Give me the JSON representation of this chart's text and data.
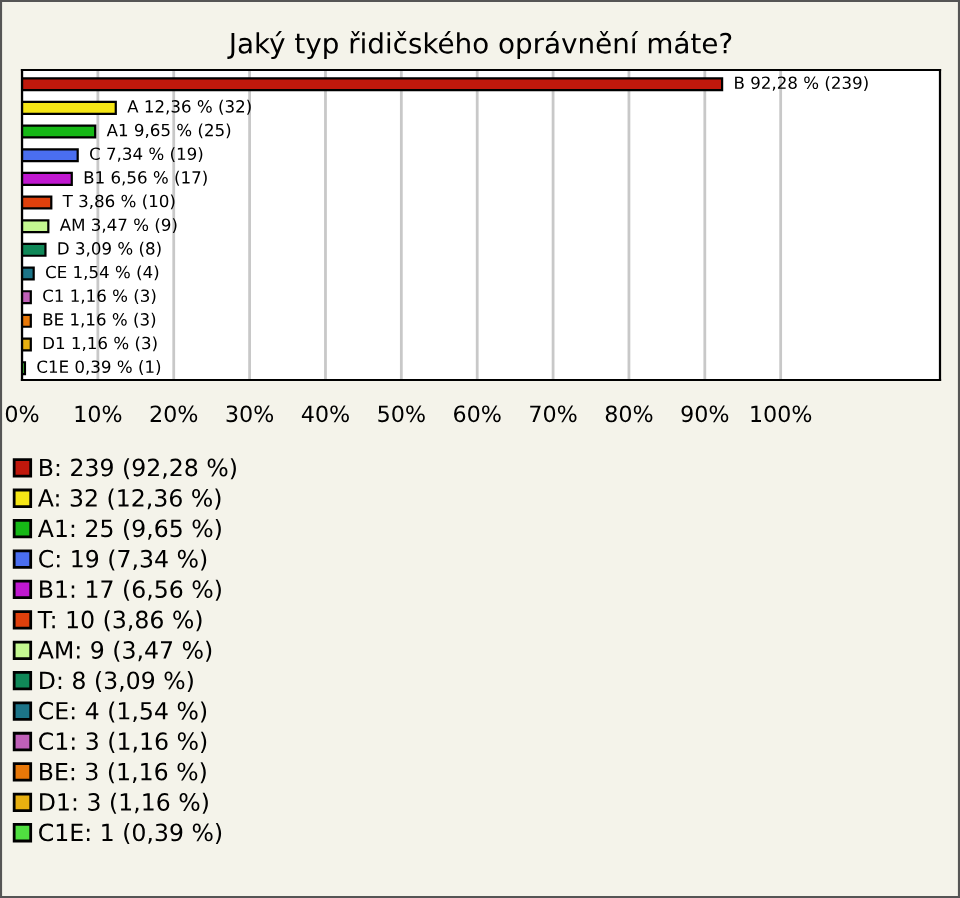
{
  "chart_data": {
    "type": "bar",
    "orientation": "horizontal",
    "title": "Jaký typ řidičského oprávnění máte?",
    "categories": [
      null,
      null,
      null,
      null,
      null,
      null,
      null,
      null,
      null,
      null,
      null,
      null,
      null
    ],
    "series": [
      {
        "name": "B: 239 (92,28 %)",
        "color": "#c0180c",
        "values": [
          92.28,
          null,
          null,
          null,
          null,
          null,
          null,
          null,
          null,
          null,
          null,
          null,
          null
        ],
        "value_labels": [
          "B 92,28 % (239)",
          null,
          null,
          null,
          null,
          null,
          null,
          null,
          null,
          null,
          null,
          null,
          null
        ]
      },
      {
        "name": "A: 32 (12,36 %)",
        "color": "#f5e616",
        "values": [
          null,
          12.36,
          null,
          null,
          null,
          null,
          null,
          null,
          null,
          null,
          null,
          null,
          null
        ],
        "value_labels": [
          null,
          "A 12,36 % (32)",
          null,
          null,
          null,
          null,
          null,
          null,
          null,
          null,
          null,
          null,
          null
        ]
      },
      {
        "name": "A1: 25 (9,65 %)",
        "color": "#16b816",
        "values": [
          null,
          null,
          9.65,
          null,
          null,
          null,
          null,
          null,
          null,
          null,
          null,
          null,
          null
        ],
        "value_labels": [
          null,
          null,
          "A1 9,65 % (25)",
          null,
          null,
          null,
          null,
          null,
          null,
          null,
          null,
          null,
          null
        ]
      },
      {
        "name": "C: 19 (7,34 %)",
        "color": "#4a6ef0",
        "values": [
          null,
          null,
          null,
          7.34,
          null,
          null,
          null,
          null,
          null,
          null,
          null,
          null,
          null
        ],
        "value_labels": [
          null,
          null,
          null,
          "C 7,34 % (19)",
          null,
          null,
          null,
          null,
          null,
          null,
          null,
          null,
          null
        ]
      },
      {
        "name": "B1: 17 (6,56 %)",
        "color": "#c018d0",
        "values": [
          null,
          null,
          null,
          null,
          6.56,
          null,
          null,
          null,
          null,
          null,
          null,
          null,
          null
        ],
        "value_labels": [
          null,
          null,
          null,
          null,
          "B1 6,56 % (17)",
          null,
          null,
          null,
          null,
          null,
          null,
          null,
          null
        ]
      },
      {
        "name": "T: 10 (3,86 %)",
        "color": "#e0400c",
        "values": [
          null,
          null,
          null,
          null,
          null,
          3.86,
          null,
          null,
          null,
          null,
          null,
          null,
          null
        ],
        "value_labels": [
          null,
          null,
          null,
          null,
          null,
          "T 3,86 % (10)",
          null,
          null,
          null,
          null,
          null,
          null,
          null
        ]
      },
      {
        "name": "AM: 9 (3,47 %)",
        "color": "#c4f890",
        "values": [
          null,
          null,
          null,
          null,
          null,
          null,
          3.47,
          null,
          null,
          null,
          null,
          null,
          null
        ],
        "value_labels": [
          null,
          null,
          null,
          null,
          null,
          null,
          "AM 3,47 % (9)",
          null,
          null,
          null,
          null,
          null,
          null
        ]
      },
      {
        "name": "D: 8 (3,09 %)",
        "color": "#108858",
        "values": [
          null,
          null,
          null,
          null,
          null,
          null,
          null,
          3.09,
          null,
          null,
          null,
          null,
          null
        ],
        "value_labels": [
          null,
          null,
          null,
          null,
          null,
          null,
          null,
          "D 3,09 % (8)",
          null,
          null,
          null,
          null,
          null
        ]
      },
      {
        "name": "CE: 4 (1,54 %)",
        "color": "#1c7488",
        "values": [
          null,
          null,
          null,
          null,
          null,
          null,
          null,
          null,
          1.54,
          null,
          null,
          null,
          null
        ],
        "value_labels": [
          null,
          null,
          null,
          null,
          null,
          null,
          null,
          null,
          "CE 1,54 % (4)",
          null,
          null,
          null,
          null
        ]
      },
      {
        "name": "C1: 3 (1,16 %)",
        "color": "#c060b8",
        "values": [
          null,
          null,
          null,
          null,
          null,
          null,
          null,
          null,
          null,
          1.16,
          null,
          null,
          null
        ],
        "value_labels": [
          null,
          null,
          null,
          null,
          null,
          null,
          null,
          null,
          null,
          "C1 1,16 % (3)",
          null,
          null,
          null
        ]
      },
      {
        "name": "BE: 3 (1,16 %)",
        "color": "#e87808",
        "values": [
          null,
          null,
          null,
          null,
          null,
          null,
          null,
          null,
          null,
          null,
          1.16,
          null,
          null
        ],
        "value_labels": [
          null,
          null,
          null,
          null,
          null,
          null,
          null,
          null,
          null,
          null,
          "BE 1,16 % (3)",
          null,
          null
        ]
      },
      {
        "name": "D1: 3 (1,16 %)",
        "color": "#e8b010",
        "values": [
          null,
          null,
          null,
          null,
          null,
          null,
          null,
          null,
          null,
          null,
          null,
          1.16,
          null
        ],
        "value_labels": [
          null,
          null,
          null,
          null,
          null,
          null,
          null,
          null,
          null,
          null,
          null,
          "D1 1,16 % (3)",
          null
        ]
      },
      {
        "name": "C1E: 1 (0,39 %)",
        "color": "#50e040",
        "values": [
          null,
          null,
          null,
          null,
          null,
          null,
          null,
          null,
          null,
          null,
          null,
          null,
          0.39
        ],
        "value_labels": [
          null,
          null,
          null,
          null,
          null,
          null,
          null,
          null,
          null,
          null,
          null,
          null,
          "C1E 0,39 % (1)"
        ]
      }
    ],
    "xlim": [
      0,
      121
    ],
    "xticks": [
      {
        "value": 0,
        "label": "0%"
      },
      {
        "value": 10,
        "label": "10%"
      },
      {
        "value": 20,
        "label": "20%"
      },
      {
        "value": 30,
        "label": "30%"
      },
      {
        "value": 40,
        "label": "40%"
      },
      {
        "value": 50,
        "label": "50%"
      },
      {
        "value": 60,
        "label": "60%"
      },
      {
        "value": 70,
        "label": "70%"
      },
      {
        "value": 80,
        "label": "80%"
      },
      {
        "value": 90,
        "label": "90%"
      },
      {
        "value": 100,
        "label": "100%"
      }
    ],
    "grid": "x",
    "legend": "bottom",
    "tick_labels": "x"
  }
}
